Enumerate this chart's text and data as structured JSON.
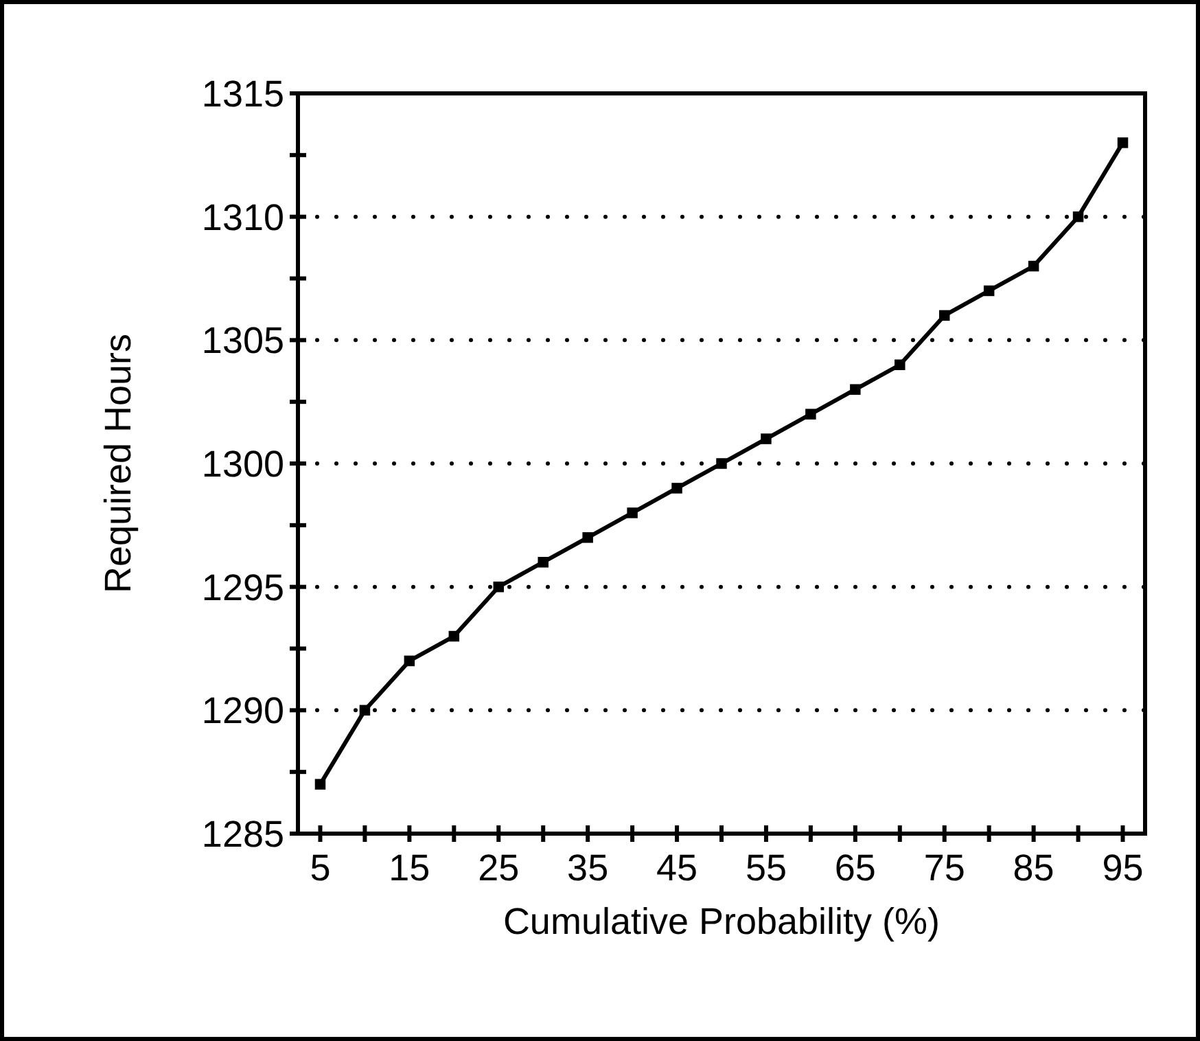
{
  "chart_data": {
    "type": "line",
    "xlabel": "Cumulative Probability (%)",
    "ylabel": "Required Hours",
    "x": [
      5,
      10,
      15,
      20,
      25,
      30,
      35,
      40,
      45,
      50,
      55,
      60,
      65,
      70,
      75,
      80,
      85,
      90,
      95
    ],
    "series": [
      {
        "color": "#000000",
        "values": [
          1287,
          1290,
          1292,
          1293,
          1295,
          1296,
          1297,
          1298,
          1299,
          1300,
          1301,
          1302,
          1303,
          1304,
          1306,
          1307,
          1308,
          1310,
          1313
        ]
      }
    ],
    "xlim": [
      2.5,
      97.5
    ],
    "xticks": [
      5,
      {
        "value": 10,
        "label": null
      },
      15,
      {
        "value": 20,
        "label": null
      },
      25,
      {
        "value": 30,
        "label": null
      },
      35,
      {
        "value": 40,
        "label": null
      },
      45,
      {
        "value": 50,
        "label": null
      },
      55,
      {
        "value": 60,
        "label": null
      },
      65,
      {
        "value": 70,
        "label": null
      },
      75,
      {
        "value": 80,
        "label": null
      },
      85,
      {
        "value": 90,
        "label": null
      },
      95
    ],
    "ylim": [
      1285,
      1315
    ],
    "yticks": [
      1285,
      {
        "value": 1287.5,
        "label": null
      },
      1290,
      {
        "value": 1292.5,
        "label": null
      },
      1295,
      {
        "value": 1297.5,
        "label": null
      },
      1300,
      {
        "value": 1302.5,
        "label": null
      },
      1305,
      {
        "value": 1307.5,
        "label": null
      },
      1310,
      {
        "value": 1312.5,
        "label": null
      },
      1315
    ],
    "grid": "y",
    "marker": "square",
    "line_style": "solid"
  }
}
